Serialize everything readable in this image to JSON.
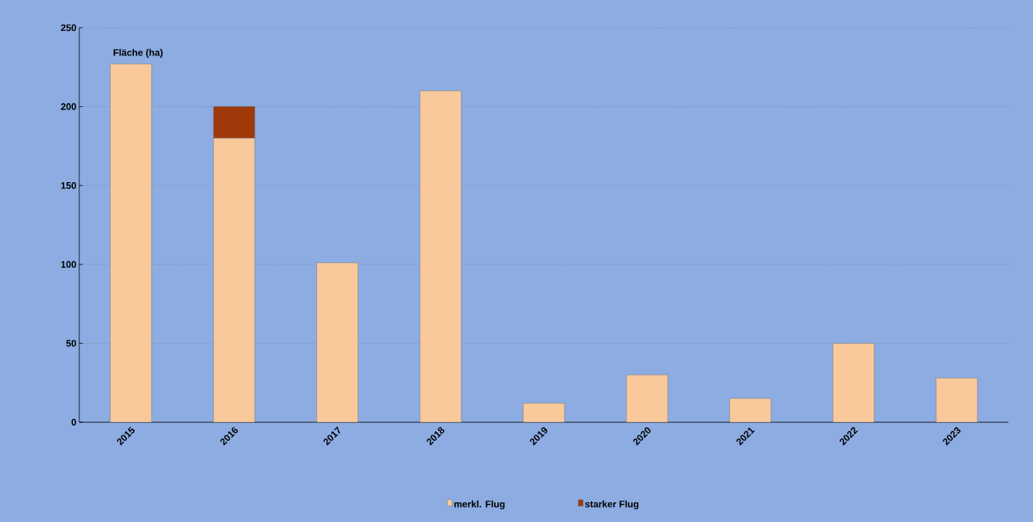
{
  "chart_data": {
    "type": "bar",
    "stacked": true,
    "ylabel": "Fläche (ha)",
    "categories": [
      "2015",
      "2016",
      "2017",
      "2018",
      "2019",
      "2020",
      "2021",
      "2022",
      "2023"
    ],
    "series": [
      {
        "name": "merkl. Flug",
        "color": "#f9c99b",
        "values": [
          227,
          180,
          101,
          210,
          12,
          30,
          15,
          50,
          28
        ]
      },
      {
        "name": "starker Flug",
        "color": "#a0390a",
        "values": [
          null,
          20,
          null,
          null,
          null,
          null,
          null,
          null,
          null
        ]
      }
    ],
    "ylim": [
      0,
      250
    ],
    "yticks": [
      0,
      50,
      100,
      150,
      200,
      250
    ],
    "grid": "y",
    "legend": "bottom"
  }
}
